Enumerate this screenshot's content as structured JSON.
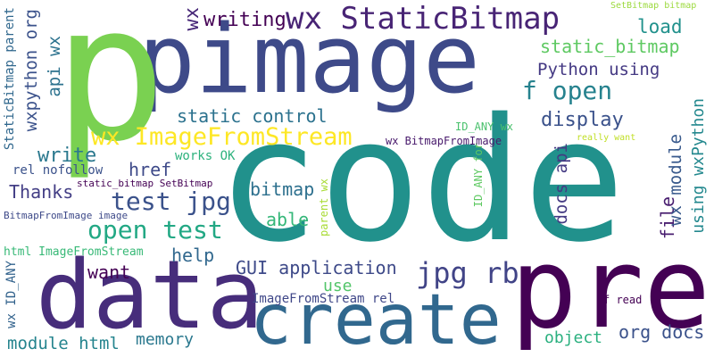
{
  "words": [
    {
      "text": "code",
      "color": "#21918c"
    },
    {
      "text": "pimage",
      "color": "#3e4a89"
    },
    {
      "text": "p",
      "color": "#7ad151"
    },
    {
      "text": "pre",
      "color": "#440154"
    },
    {
      "text": "data",
      "color": "#472d7b"
    },
    {
      "text": "create",
      "color": "#31688e"
    },
    {
      "text": "wx StaticBitmap",
      "color": "#482475"
    },
    {
      "text": "wx ImageFromStream",
      "color": "#fde725"
    },
    {
      "text": "open test",
      "color": "#22a884"
    },
    {
      "text": "test jpg",
      "color": "#3b528b"
    },
    {
      "text": "f open",
      "color": "#26828e"
    },
    {
      "text": "jpg rb",
      "color": "#414487"
    },
    {
      "text": "static control",
      "color": "#2c728e"
    },
    {
      "text": "Python using",
      "color": "#443983"
    },
    {
      "text": "static_bitmap",
      "color": "#5ec962"
    },
    {
      "text": "load",
      "color": "#21918c"
    },
    {
      "text": "writing",
      "color": "#440154"
    },
    {
      "text": "wx",
      "color": "#482878"
    },
    {
      "text": "display",
      "color": "#3b528b"
    },
    {
      "text": "write",
      "color": "#2a788e"
    },
    {
      "text": "href",
      "color": "#3e4a89"
    },
    {
      "text": "Thanks",
      "color": "#433e85"
    },
    {
      "text": "bitmap",
      "color": "#2d708e"
    },
    {
      "text": "able",
      "color": "#35b779"
    },
    {
      "text": "want",
      "color": "#440154"
    },
    {
      "text": "help",
      "color": "#31688e"
    },
    {
      "text": "GUI application",
      "color": "#3e4a89"
    },
    {
      "text": "use",
      "color": "#52c569"
    },
    {
      "text": "memory",
      "color": "#2a788e"
    },
    {
      "text": "module html",
      "color": "#25848e"
    },
    {
      "text": "object",
      "color": "#2ab07f"
    },
    {
      "text": "org docs",
      "color": "#3b528b"
    },
    {
      "text": "file",
      "color": "#481d6f"
    },
    {
      "text": "docs api",
      "color": "#443a83"
    },
    {
      "text": "wx module",
      "color": "#38598c"
    },
    {
      "text": "using wxPython",
      "color": "#23888e"
    },
    {
      "text": "api wx",
      "color": "#2c728e"
    },
    {
      "text": "wxpython org",
      "color": "#3b528b"
    },
    {
      "text": "StaticBitmap parent",
      "color": "#31688e"
    },
    {
      "text": "works OK",
      "color": "#2db27d"
    },
    {
      "text": "rel nofollow",
      "color": "#3b528b"
    },
    {
      "text": "static_bitmap SetBitmap",
      "color": "#440154"
    },
    {
      "text": "BitmapFromImage image",
      "color": "#3e4a89"
    },
    {
      "text": "html ImageFromStream",
      "color": "#38b977"
    },
    {
      "text": "wx ID_ANY",
      "color": "#33638d"
    },
    {
      "text": "ImageFromStream rel",
      "color": "#3f4788"
    },
    {
      "text": "f read",
      "color": "#440154"
    },
    {
      "text": "parent wx",
      "color": "#a8db34"
    },
    {
      "text": "ID_ANY for",
      "color": "#5ec962"
    },
    {
      "text": "wx BitmapFromImage",
      "color": "#481a6c"
    },
    {
      "text": "really want",
      "color": "#c0df25"
    },
    {
      "text": "SetBitmap bitmap",
      "color": "#9bd93c"
    },
    {
      "text": "ID_ANY wx",
      "color": "#4ac16d"
    }
  ]
}
